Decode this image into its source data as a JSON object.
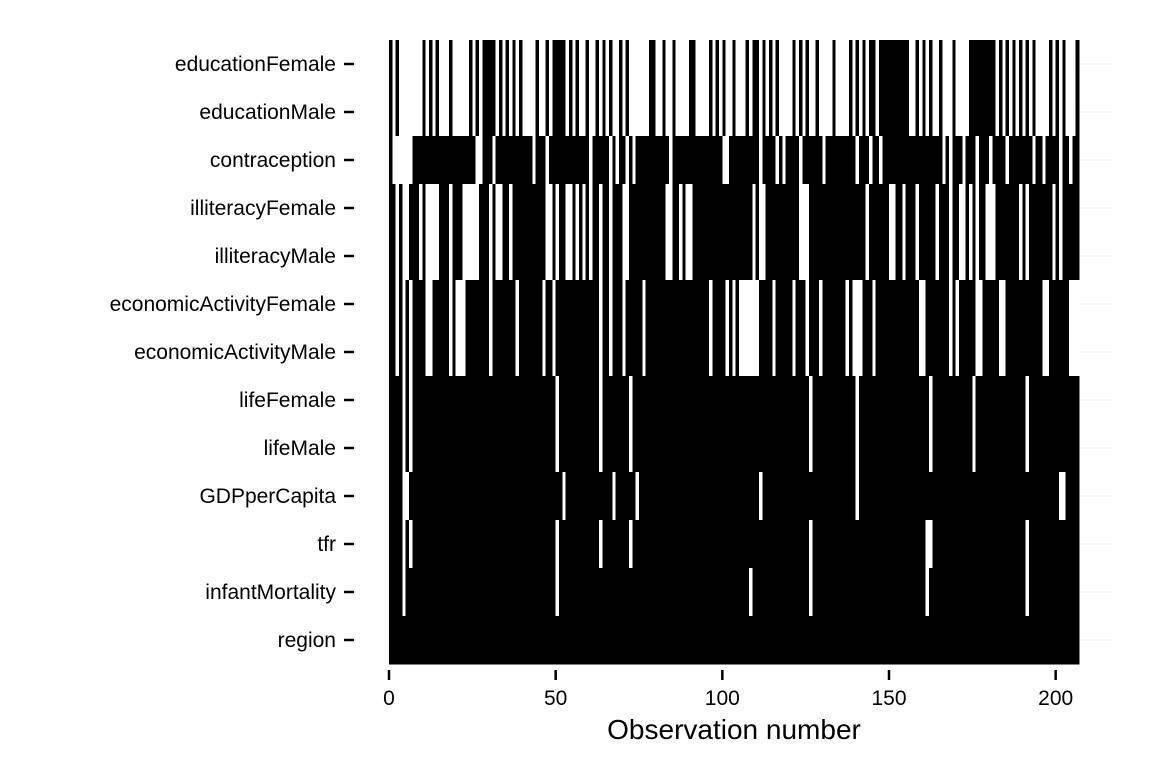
{
  "chart_data": {
    "type": "heatmap",
    "title": "",
    "xlabel": "Observation number",
    "ylabel": "",
    "xlim": [
      0,
      207
    ],
    "x_ticks": [
      0,
      50,
      100,
      150,
      200
    ],
    "grid": true,
    "legend": "none",
    "colors": {
      "present": "#000000",
      "missing": "#ffffff",
      "grid": "#ebebeb"
    },
    "n_observations": 207,
    "variables": [
      "educationFemale",
      "educationMale",
      "contraception",
      "illiteracyFemale",
      "illiteracyMale",
      "economicActivityFemale",
      "economicActivityMale",
      "lifeFemale",
      "lifeMale",
      "GDPperCapita",
      "tfr",
      "infantMortality",
      "region"
    ],
    "missing_obs": {
      "educationFemale": [
        1,
        3,
        4,
        5,
        6,
        7,
        8,
        9,
        11,
        13,
        15,
        16,
        17,
        19,
        20,
        21,
        22,
        23,
        25,
        27,
        32,
        34,
        36,
        38,
        40,
        41,
        42,
        43,
        45,
        46,
        48,
        53,
        55,
        57,
        58,
        60,
        61,
        63,
        65,
        67,
        68,
        70,
        72,
        73,
        74,
        75,
        76,
        77,
        80,
        81,
        83,
        84,
        86,
        87,
        88,
        89,
        92,
        93,
        94,
        95,
        97,
        99,
        101,
        102,
        104,
        105,
        106,
        108,
        111,
        113,
        115,
        117,
        118,
        119,
        120,
        122,
        124,
        126,
        127,
        129,
        130,
        131,
        132,
        134,
        135,
        136,
        137,
        139,
        141,
        143,
        146,
        156,
        157,
        159,
        161,
        163,
        164,
        166,
        167,
        168,
        170,
        171,
        172,
        173,
        182,
        184,
        186,
        188,
        190,
        192,
        194,
        195,
        196,
        197,
        199,
        201,
        203,
        204,
        205
      ],
      "educationMale": [
        1,
        3,
        4,
        5,
        6,
        7,
        8,
        9,
        11,
        13,
        15,
        16,
        17,
        19,
        20,
        21,
        22,
        23,
        25,
        27,
        32,
        34,
        36,
        38,
        40,
        41,
        42,
        43,
        45,
        46,
        48,
        53,
        55,
        57,
        58,
        60,
        61,
        63,
        65,
        67,
        68,
        70,
        72,
        73,
        74,
        75,
        76,
        77,
        80,
        81,
        83,
        84,
        86,
        87,
        88,
        89,
        92,
        93,
        94,
        95,
        97,
        99,
        101,
        102,
        104,
        105,
        106,
        108,
        111,
        113,
        115,
        117,
        118,
        119,
        120,
        122,
        124,
        126,
        127,
        129,
        130,
        131,
        132,
        134,
        135,
        136,
        137,
        139,
        141,
        143,
        146,
        156,
        157,
        159,
        161,
        163,
        164,
        166,
        167,
        168,
        170,
        171,
        172,
        173,
        182,
        184,
        186,
        188,
        190,
        192,
        194,
        195,
        196,
        197,
        199,
        201,
        203,
        204,
        205
      ],
      "contraception": [
        1,
        2,
        3,
        4,
        5,
        6,
        26,
        27,
        31,
        43,
        47,
        60,
        66,
        68,
        71,
        73,
        84,
        100,
        101,
        111,
        116,
        118,
        123,
        130,
        140,
        144,
        147,
        166,
        168,
        172,
        176,
        180,
        185,
        193,
        196,
        201,
        204
      ],
      "illiteracyFemale": [
        2,
        4,
        5,
        9,
        11,
        12,
        13,
        14,
        18,
        22,
        23,
        24,
        25,
        26,
        30,
        32,
        33,
        36,
        47,
        48,
        50,
        53,
        54,
        56,
        58,
        60,
        63,
        66,
        70,
        71,
        83,
        84,
        87,
        89,
        90,
        109,
        111,
        112,
        123,
        124,
        125,
        143,
        150,
        151,
        154,
        158,
        164,
        168,
        171,
        172,
        174,
        176,
        179,
        180,
        181,
        189,
        191,
        199,
        201
      ],
      "illiteracyMale": [
        2,
        4,
        5,
        9,
        11,
        12,
        13,
        14,
        18,
        22,
        23,
        24,
        25,
        26,
        30,
        32,
        33,
        36,
        47,
        48,
        50,
        53,
        54,
        56,
        58,
        60,
        63,
        66,
        70,
        71,
        83,
        84,
        87,
        89,
        90,
        109,
        111,
        112,
        123,
        124,
        125,
        143,
        150,
        151,
        154,
        158,
        164,
        168,
        171,
        172,
        174,
        176,
        179,
        180,
        181,
        189,
        191,
        199,
        201
      ],
      "economicActivityFemale": [
        2,
        4,
        6,
        11,
        12,
        18,
        20,
        21,
        22,
        30,
        38,
        46,
        49,
        63,
        66,
        70,
        76,
        96,
        101,
        103,
        105,
        106,
        107,
        108,
        109,
        110,
        115,
        121,
        125,
        129,
        137,
        139,
        140,
        141,
        145,
        159,
        160,
        168,
        170,
        176,
        177,
        183,
        184,
        196,
        197,
        204,
        205,
        206
      ],
      "economicActivityMale": [
        2,
        4,
        6,
        11,
        12,
        18,
        20,
        21,
        22,
        30,
        38,
        46,
        49,
        63,
        66,
        70,
        76,
        96,
        101,
        103,
        105,
        106,
        107,
        108,
        109,
        110,
        115,
        121,
        125,
        129,
        137,
        139,
        140,
        141,
        145,
        159,
        160,
        168,
        170,
        176,
        177,
        183,
        184,
        196,
        197,
        204,
        205,
        206
      ],
      "lifeFemale": [
        4,
        6,
        50,
        63,
        72,
        126,
        140,
        162,
        175,
        191
      ],
      "lifeMale": [
        4,
        6,
        50,
        63,
        72,
        126,
        140,
        162,
        175,
        191
      ],
      "GDPperCapita": [
        4,
        5,
        52,
        67,
        74,
        111,
        140,
        201,
        202
      ],
      "tfr": [
        4,
        6,
        50,
        63,
        72,
        126,
        161,
        162,
        191
      ],
      "infantMortality": [
        4,
        50,
        108,
        126,
        161,
        191
      ],
      "region": []
    }
  }
}
